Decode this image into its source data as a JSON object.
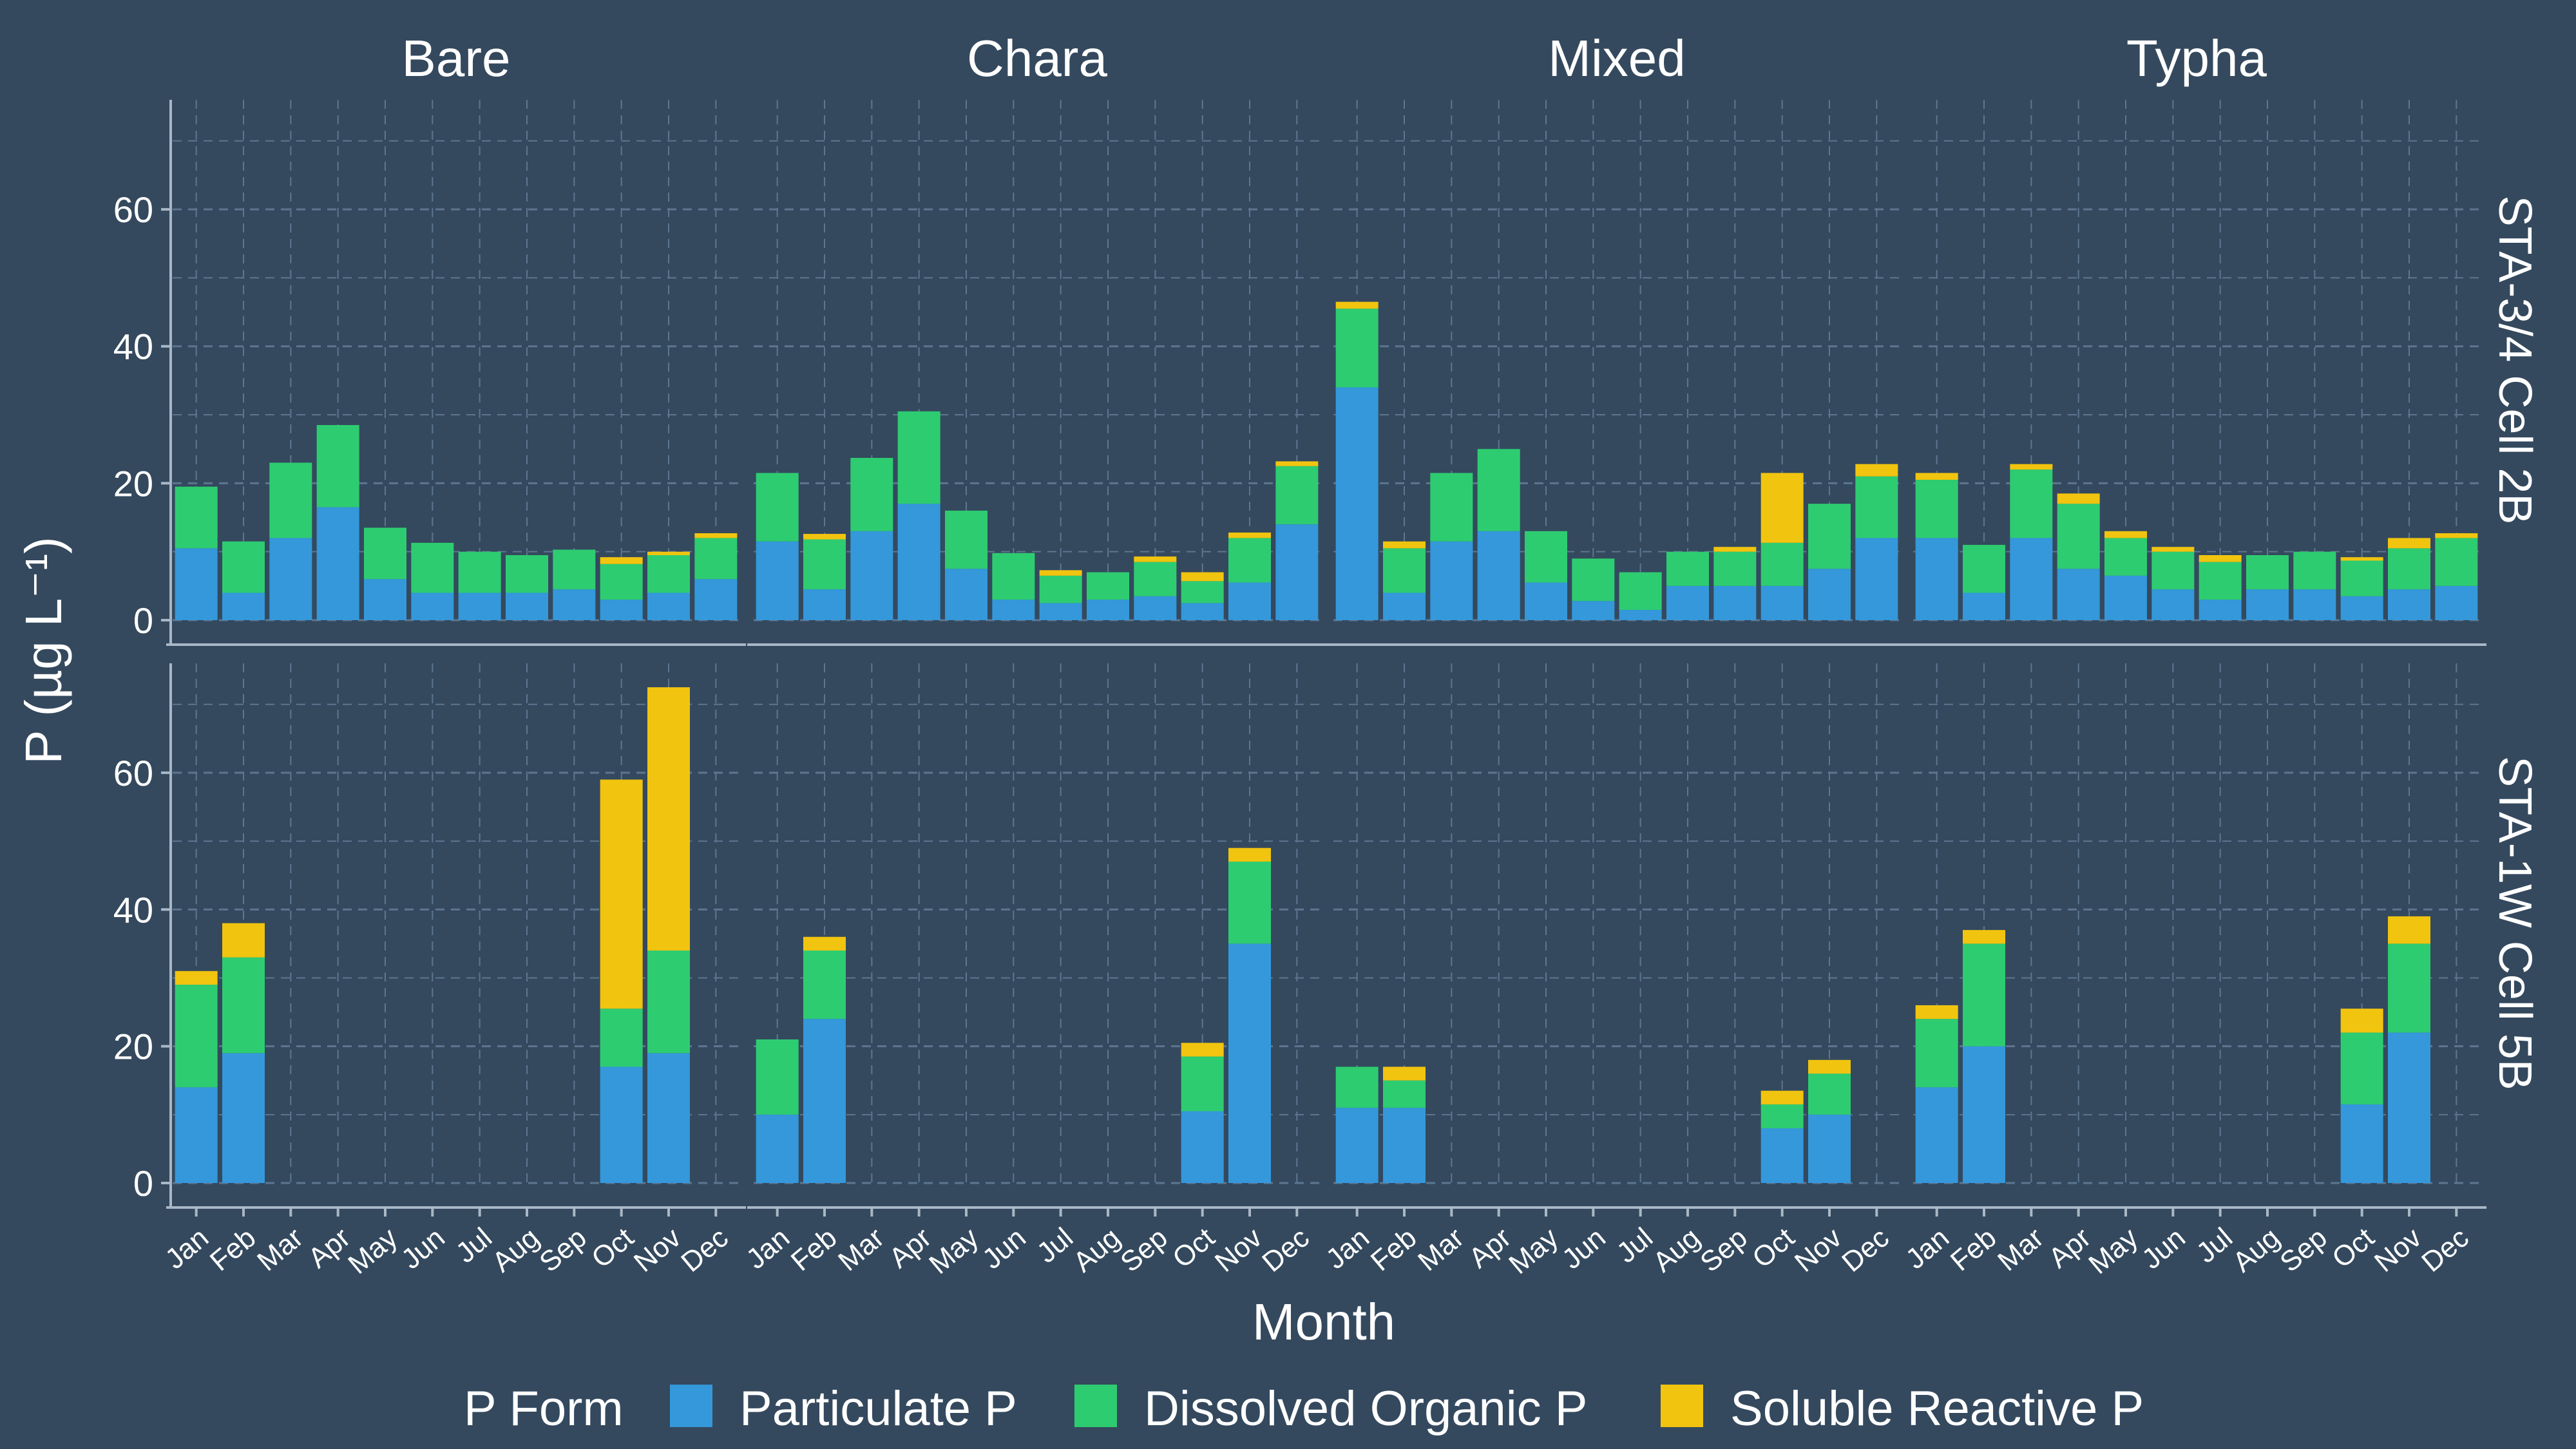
{
  "chart_data": {
    "type": "bar",
    "stacked": true,
    "facets": {
      "columns": [
        "Bare",
        "Chara",
        "Mixed",
        "Typha"
      ],
      "rows": [
        "STA-3/4 Cell 2B",
        "STA-1W Cell 5B"
      ]
    },
    "categories": [
      "Jan",
      "Feb",
      "Mar",
      "Apr",
      "May",
      "Jun",
      "Jul",
      "Aug",
      "Sep",
      "Oct",
      "Nov",
      "Dec"
    ],
    "series": [
      {
        "name": "Particulate P",
        "color": "#3498db"
      },
      {
        "name": "Dissolved Organic P",
        "color": "#2ecc71"
      },
      {
        "name": "Soluble Reactive P",
        "color": "#f1c40f"
      }
    ],
    "xlabel": "Month",
    "ylabel": "P (µg L⁻¹)",
    "ylim": [
      0,
      76
    ],
    "yticks": [
      0,
      20,
      40,
      60
    ],
    "grid": true,
    "legend": {
      "title": "P Form",
      "position": "bottom"
    },
    "panels": [
      {
        "row": "STA-3/4 Cell 2B",
        "col": "Bare",
        "values": [
          [
            10.5,
            9,
            0
          ],
          [
            4,
            7.5,
            0
          ],
          [
            12,
            11,
            0
          ],
          [
            16.5,
            12,
            0
          ],
          [
            6,
            7.5,
            0
          ],
          [
            4,
            7.3,
            0
          ],
          [
            4,
            6,
            0
          ],
          [
            4,
            5.5,
            0
          ],
          [
            4.5,
            5.8,
            0
          ],
          [
            3,
            5.2,
            1
          ],
          [
            4,
            5.5,
            0.5
          ],
          [
            6,
            6,
            0.7
          ]
        ]
      },
      {
        "row": "STA-3/4 Cell 2B",
        "col": "Chara",
        "values": [
          [
            11.5,
            10,
            0
          ],
          [
            4.5,
            7.3,
            0.8
          ],
          [
            13,
            10.7,
            0
          ],
          [
            17,
            13.5,
            0
          ],
          [
            7.5,
            8.5,
            0
          ],
          [
            3,
            6.8,
            0
          ],
          [
            2.5,
            4,
            0.8
          ],
          [
            3,
            4,
            0
          ],
          [
            3.5,
            5,
            0.8
          ],
          [
            2.5,
            3.2,
            1.3
          ],
          [
            5.5,
            6.5,
            0.8
          ],
          [
            14,
            8.5,
            0.7
          ]
        ]
      },
      {
        "row": "STA-3/4 Cell 2B",
        "col": "Mixed",
        "values": [
          [
            34,
            11.5,
            1
          ],
          [
            4,
            6.5,
            1
          ],
          [
            11.5,
            10,
            0
          ],
          [
            13,
            12,
            0
          ],
          [
            5.5,
            7.5,
            0
          ],
          [
            2.8,
            6.2,
            0
          ],
          [
            1.5,
            5.5,
            0
          ],
          [
            5,
            5,
            0
          ],
          [
            5,
            5,
            0.7
          ],
          [
            5,
            6.3,
            10.2
          ],
          [
            7.5,
            9.5,
            0
          ],
          [
            12,
            9,
            1.8
          ]
        ]
      },
      {
        "row": "STA-3/4 Cell 2B",
        "col": "Typha",
        "values": [
          [
            12,
            8.5,
            1
          ],
          [
            4,
            7,
            0
          ],
          [
            12,
            10,
            0.8
          ],
          [
            7.5,
            9.5,
            1.5
          ],
          [
            6.5,
            5.5,
            1
          ],
          [
            4.5,
            5.5,
            0.7
          ],
          [
            3,
            5.5,
            1
          ],
          [
            4.5,
            5,
            0
          ],
          [
            4.5,
            5.5,
            0
          ],
          [
            3.5,
            5.2,
            0.5
          ],
          [
            4.5,
            6,
            1.5
          ],
          [
            5,
            7,
            0.7
          ]
        ]
      },
      {
        "row": "STA-1W Cell 5B",
        "col": "Bare",
        "values": [
          [
            14,
            15,
            2
          ],
          [
            19,
            14,
            5
          ],
          [
            0,
            0,
            0
          ],
          [
            0,
            0,
            0
          ],
          [
            0,
            0,
            0
          ],
          [
            0,
            0,
            0
          ],
          [
            0,
            0,
            0
          ],
          [
            0,
            0,
            0
          ],
          [
            0,
            0,
            0
          ],
          [
            17,
            8.5,
            33.5
          ],
          [
            19,
            15,
            38.5
          ],
          [
            0,
            0,
            0
          ]
        ]
      },
      {
        "row": "STA-1W Cell 5B",
        "col": "Chara",
        "values": [
          [
            10,
            11,
            0
          ],
          [
            24,
            10,
            2
          ],
          [
            0,
            0,
            0
          ],
          [
            0,
            0,
            0
          ],
          [
            0,
            0,
            0
          ],
          [
            0,
            0,
            0
          ],
          [
            0,
            0,
            0
          ],
          [
            0,
            0,
            0
          ],
          [
            0,
            0,
            0
          ],
          [
            10.5,
            8,
            2
          ],
          [
            35,
            12,
            2
          ],
          [
            0,
            0,
            0
          ]
        ]
      },
      {
        "row": "STA-1W Cell 5B",
        "col": "Mixed",
        "values": [
          [
            11,
            6,
            0
          ],
          [
            11,
            4,
            2
          ],
          [
            0,
            0,
            0
          ],
          [
            0,
            0,
            0
          ],
          [
            0,
            0,
            0
          ],
          [
            0,
            0,
            0
          ],
          [
            0,
            0,
            0
          ],
          [
            0,
            0,
            0
          ],
          [
            0,
            0,
            0
          ],
          [
            8,
            3.5,
            2
          ],
          [
            10,
            6,
            2
          ],
          [
            0,
            0,
            0
          ]
        ]
      },
      {
        "row": "STA-1W Cell 5B",
        "col": "Typha",
        "values": [
          [
            14,
            10,
            2
          ],
          [
            20,
            15,
            2
          ],
          [
            0,
            0,
            0
          ],
          [
            0,
            0,
            0
          ],
          [
            0,
            0,
            0
          ],
          [
            0,
            0,
            0
          ],
          [
            0,
            0,
            0
          ],
          [
            0,
            0,
            0
          ],
          [
            0,
            0,
            0
          ],
          [
            11.5,
            10.5,
            3.5
          ],
          [
            22,
            13,
            4
          ],
          [
            0,
            0,
            0
          ]
        ]
      }
    ]
  }
}
